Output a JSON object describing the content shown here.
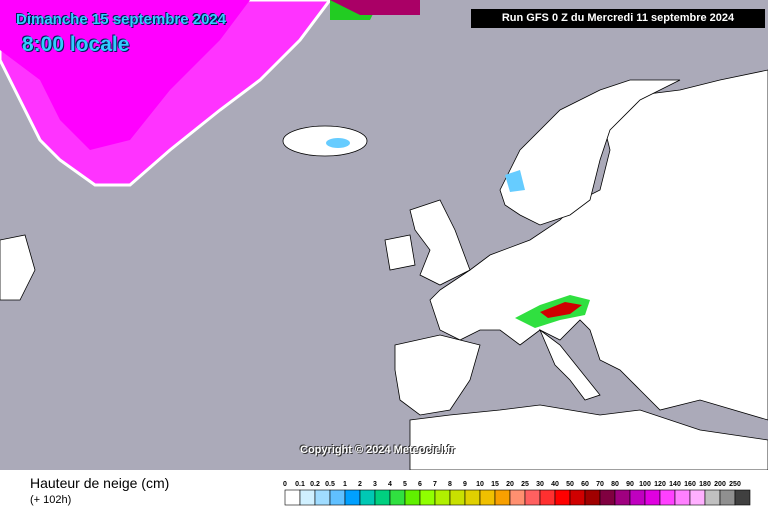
{
  "header": {
    "date": "Dimanche 15 septembre 2024",
    "hour": "8:00 locale",
    "run": "Run GFS 0 Z du Mercredi 11 septembre 2024"
  },
  "copyright": "Copyright © 2024 Meteociel.fr",
  "footer": {
    "parameter": "Hauteur de neige (cm)",
    "lead_time": "(+ 102h)"
  },
  "legend": {
    "labels": [
      "0",
      "0.1",
      "0.2",
      "0.5",
      "1",
      "2",
      "3",
      "4",
      "5",
      "6",
      "7",
      "8",
      "9",
      "10",
      "15",
      "20",
      "25",
      "30",
      "40",
      "50",
      "60",
      "70",
      "80",
      "90",
      "100",
      "120",
      "140",
      "160",
      "180",
      "200",
      "250"
    ],
    "colors": [
      "#ffffff",
      "#d0f0ff",
      "#a0dcff",
      "#60c0ff",
      "#00a0ff",
      "#00c8b4",
      "#00d080",
      "#30e040",
      "#60f000",
      "#90ff00",
      "#b0f000",
      "#c8e000",
      "#e0d000",
      "#f0c000",
      "#f8a000",
      "#ff9070",
      "#ff6060",
      "#ff3030",
      "#ff0000",
      "#d00000",
      "#a00000",
      "#800040",
      "#a00080",
      "#c000c0",
      "#e000e0",
      "#ff40ff",
      "#ff80ff",
      "#ffb0ff",
      "#c0c0c0",
      "#909090",
      "#404040"
    ]
  }
}
